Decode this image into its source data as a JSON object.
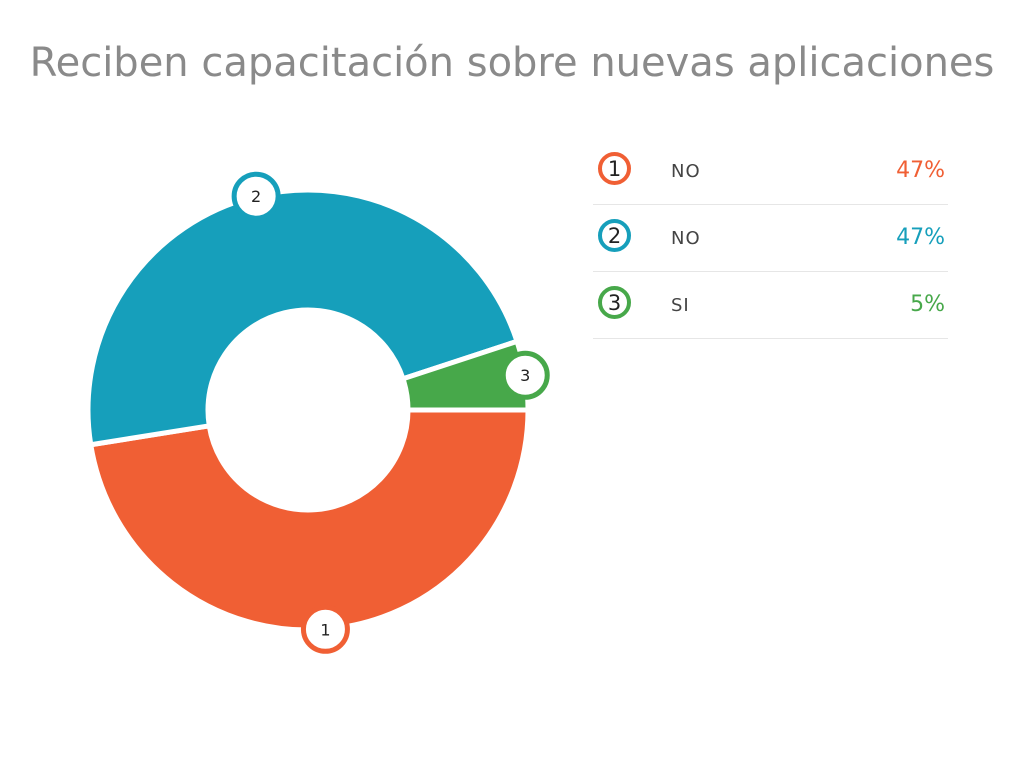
{
  "title": "Reciben capacitación sobre nuevas aplicaciones",
  "chart_data": {
    "type": "pie",
    "variant": "donut",
    "title": "Reciben capacitación sobre nuevas aplicaciones",
    "categories": [
      "NO",
      "NO",
      "SI"
    ],
    "markers": [
      "1",
      "2",
      "3"
    ],
    "values": [
      47,
      47,
      5
    ],
    "value_labels": [
      "47%",
      "47%",
      "5%"
    ],
    "colors": [
      "#f05f34",
      "#169fbb",
      "#47a84a"
    ],
    "legend": "right"
  }
}
